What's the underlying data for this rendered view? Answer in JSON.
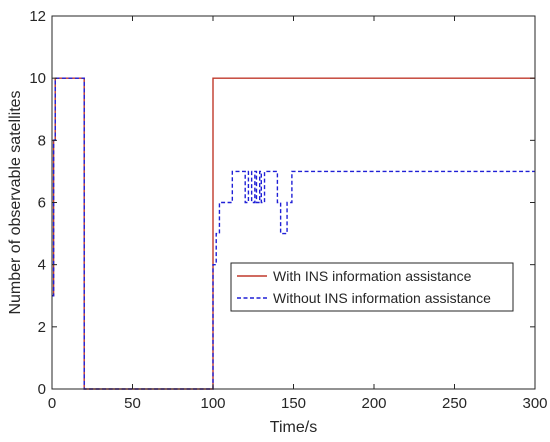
{
  "chart_data": {
    "type": "line",
    "xlabel": "Time/s",
    "ylabel": "Number of observable satellites",
    "xlim": [
      0,
      300
    ],
    "ylim": [
      0,
      12
    ],
    "xticks": [
      0,
      50,
      100,
      150,
      200,
      250,
      300
    ],
    "yticks": [
      0,
      2,
      4,
      6,
      8,
      10,
      12
    ],
    "grid": false,
    "legend_position": "center-right",
    "series": [
      {
        "name": "With INS information assistance",
        "color": "#c0392b",
        "style": "solid",
        "points": [
          [
            0,
            3
          ],
          [
            1,
            3
          ],
          [
            1,
            8
          ],
          [
            2,
            8
          ],
          [
            2,
            10
          ],
          [
            20,
            10
          ],
          [
            20,
            0
          ],
          [
            100,
            0
          ],
          [
            100,
            10
          ],
          [
            300,
            10
          ]
        ]
      },
      {
        "name": "Without INS information assistance",
        "color": "#1f1fd6",
        "style": "dashed",
        "points": [
          [
            0,
            3
          ],
          [
            1,
            3
          ],
          [
            1,
            8
          ],
          [
            2,
            8
          ],
          [
            2,
            10
          ],
          [
            20,
            10
          ],
          [
            20,
            0
          ],
          [
            100,
            0
          ],
          [
            100,
            4
          ],
          [
            102,
            4
          ],
          [
            102,
            5
          ],
          [
            104,
            5
          ],
          [
            104,
            6
          ],
          [
            112,
            6
          ],
          [
            112,
            7
          ],
          [
            120,
            7
          ],
          [
            120,
            6
          ],
          [
            122,
            6
          ],
          [
            122,
            7
          ],
          [
            124,
            7
          ],
          [
            124,
            6
          ],
          [
            126,
            6
          ],
          [
            126,
            7
          ],
          [
            127,
            7
          ],
          [
            127,
            6
          ],
          [
            129,
            6
          ],
          [
            129,
            7
          ],
          [
            130,
            7
          ],
          [
            130,
            6
          ],
          [
            132,
            6
          ],
          [
            132,
            7
          ],
          [
            140,
            7
          ],
          [
            140,
            6
          ],
          [
            142,
            6
          ],
          [
            142,
            5
          ],
          [
            146,
            5
          ],
          [
            146,
            6
          ],
          [
            149,
            6
          ],
          [
            149,
            7
          ],
          [
            300,
            7
          ]
        ]
      }
    ]
  }
}
